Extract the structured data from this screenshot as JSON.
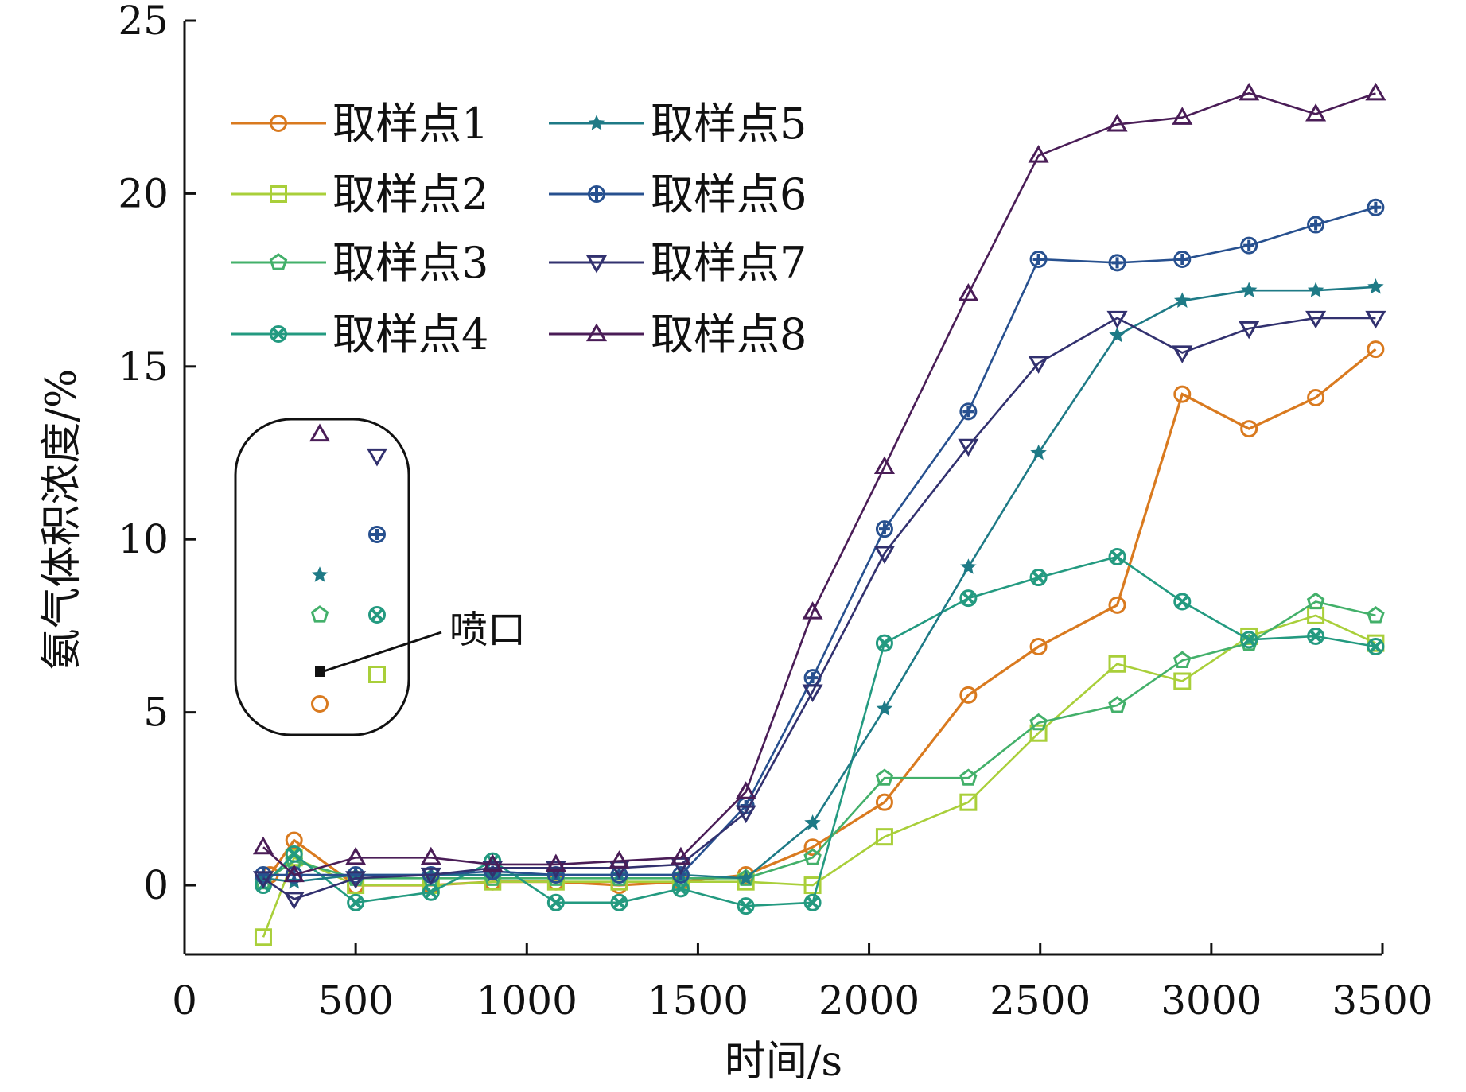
{
  "chart_data": {
    "type": "line",
    "title": "",
    "xlabel": "时间/s",
    "ylabel": "氨气体积浓度/%",
    "xlim": [
      0,
      3500
    ],
    "ylim": [
      -2,
      25
    ],
    "xticks": [
      0,
      500,
      1000,
      1500,
      2000,
      2500,
      3000,
      3500
    ],
    "yticks": [
      0,
      5,
      10,
      15,
      20,
      25
    ],
    "grid": false,
    "legend_position": "top-left",
    "legend_columns": 2,
    "series": [
      {
        "name": "取样点1",
        "color": "#d97a1f",
        "marker": "circle",
        "points": [
          [
            250,
            0.3
          ],
          [
            320,
            1.3
          ],
          [
            500,
            0.0
          ],
          [
            720,
            0.0
          ],
          [
            900,
            0.1
          ],
          [
            1085,
            0.1
          ],
          [
            1270,
            0.0
          ],
          [
            1450,
            0.1
          ],
          [
            1640,
            0.3
          ],
          [
            1835,
            1.1
          ],
          [
            2045,
            2.4
          ],
          [
            2290,
            5.5
          ],
          [
            2495,
            6.9
          ],
          [
            2725,
            8.1
          ],
          [
            2915,
            14.2
          ],
          [
            3110,
            13.2
          ],
          [
            3305,
            14.1
          ],
          [
            3480,
            15.5
          ]
        ]
      },
      {
        "name": "取样点2",
        "color": "#a9cf3a",
        "marker": "square",
        "points": [
          [
            230,
            -1.5
          ],
          [
            320,
            0.8
          ],
          [
            500,
            0.0
          ],
          [
            720,
            0.0
          ],
          [
            900,
            0.1
          ],
          [
            1085,
            0.1
          ],
          [
            1270,
            0.1
          ],
          [
            1450,
            0.1
          ],
          [
            1640,
            0.1
          ],
          [
            1835,
            0.0
          ],
          [
            2045,
            1.4
          ],
          [
            2290,
            2.4
          ],
          [
            2495,
            4.4
          ],
          [
            2725,
            6.4
          ],
          [
            2915,
            5.9
          ],
          [
            3110,
            7.2
          ],
          [
            3305,
            7.8
          ],
          [
            3480,
            7.0
          ]
        ]
      },
      {
        "name": "取样点3",
        "color": "#43b06a",
        "marker": "pentagon",
        "points": [
          [
            230,
            0.1
          ],
          [
            320,
            0.7
          ],
          [
            500,
            0.2
          ],
          [
            720,
            0.2
          ],
          [
            900,
            0.2
          ],
          [
            1085,
            0.2
          ],
          [
            1270,
            0.2
          ],
          [
            1450,
            0.2
          ],
          [
            1640,
            0.2
          ],
          [
            1835,
            0.8
          ],
          [
            2045,
            3.1
          ],
          [
            2290,
            3.1
          ],
          [
            2495,
            4.7
          ],
          [
            2725,
            5.2
          ],
          [
            2915,
            6.5
          ],
          [
            3110,
            7.0
          ],
          [
            3305,
            8.2
          ],
          [
            3480,
            7.8
          ]
        ]
      },
      {
        "name": "取样点4",
        "color": "#239a80",
        "marker": "cross-x",
        "points": [
          [
            230,
            0.0
          ],
          [
            320,
            0.9
          ],
          [
            500,
            -0.5
          ],
          [
            720,
            -0.2
          ],
          [
            900,
            0.7
          ],
          [
            1085,
            -0.5
          ],
          [
            1270,
            -0.5
          ],
          [
            1450,
            -0.1
          ],
          [
            1640,
            -0.6
          ],
          [
            1835,
            -0.5
          ],
          [
            2045,
            7.0
          ],
          [
            2290,
            8.3
          ],
          [
            2495,
            8.9
          ],
          [
            2725,
            9.5
          ],
          [
            2915,
            8.2
          ],
          [
            3110,
            7.1
          ],
          [
            3305,
            7.2
          ],
          [
            3480,
            6.9
          ]
        ]
      },
      {
        "name": "取样点5",
        "color": "#1e7a86",
        "marker": "star",
        "points": [
          [
            230,
            0.2
          ],
          [
            320,
            0.1
          ],
          [
            500,
            0.3
          ],
          [
            720,
            0.3
          ],
          [
            900,
            0.3
          ],
          [
            1085,
            0.3
          ],
          [
            1270,
            0.3
          ],
          [
            1450,
            0.3
          ],
          [
            1640,
            0.2
          ],
          [
            1835,
            1.8
          ],
          [
            2045,
            5.1
          ],
          [
            2290,
            9.2
          ],
          [
            2495,
            12.5
          ],
          [
            2725,
            15.9
          ],
          [
            2915,
            16.9
          ],
          [
            3110,
            17.2
          ],
          [
            3305,
            17.2
          ],
          [
            3480,
            17.3
          ]
        ]
      },
      {
        "name": "取样点6",
        "color": "#27508f",
        "marker": "plus",
        "points": [
          [
            230,
            0.3
          ],
          [
            320,
            0.3
          ],
          [
            500,
            0.3
          ],
          [
            720,
            0.3
          ],
          [
            900,
            0.4
          ],
          [
            1085,
            0.3
          ],
          [
            1270,
            0.3
          ],
          [
            1450,
            0.3
          ],
          [
            1640,
            2.3
          ],
          [
            1835,
            6.0
          ],
          [
            2045,
            10.3
          ],
          [
            2290,
            13.7
          ],
          [
            2495,
            18.1
          ],
          [
            2725,
            18.0
          ],
          [
            2915,
            18.1
          ],
          [
            3110,
            18.5
          ],
          [
            3305,
            19.1
          ],
          [
            3480,
            19.6
          ]
        ]
      },
      {
        "name": "取样点7",
        "color": "#32316f",
        "marker": "triangle-down",
        "points": [
          [
            230,
            0.2
          ],
          [
            320,
            -0.4
          ],
          [
            500,
            0.2
          ],
          [
            720,
            0.3
          ],
          [
            900,
            0.5
          ],
          [
            1085,
            0.5
          ],
          [
            1270,
            0.5
          ],
          [
            1450,
            0.6
          ],
          [
            1640,
            2.1
          ],
          [
            1835,
            5.6
          ],
          [
            2045,
            9.6
          ],
          [
            2290,
            12.7
          ],
          [
            2495,
            15.1
          ],
          [
            2725,
            16.4
          ],
          [
            2915,
            15.4
          ],
          [
            3110,
            16.1
          ],
          [
            3305,
            16.4
          ],
          [
            3480,
            16.4
          ]
        ]
      },
      {
        "name": "取样点8",
        "color": "#4a1d57",
        "marker": "triangle-up",
        "points": [
          [
            230,
            1.1
          ],
          [
            320,
            0.3
          ],
          [
            500,
            0.8
          ],
          [
            720,
            0.8
          ],
          [
            900,
            0.6
          ],
          [
            1085,
            0.6
          ],
          [
            1270,
            0.7
          ],
          [
            1450,
            0.8
          ],
          [
            1640,
            2.7
          ],
          [
            1835,
            7.9
          ],
          [
            2045,
            12.1
          ],
          [
            2290,
            17.1
          ],
          [
            2495,
            21.1
          ],
          [
            2725,
            22.0
          ],
          [
            2915,
            22.2
          ],
          [
            3110,
            22.9
          ],
          [
            3305,
            22.3
          ],
          [
            3480,
            22.9
          ]
        ]
      }
    ],
    "inset": {
      "label": "喷口"
    }
  }
}
